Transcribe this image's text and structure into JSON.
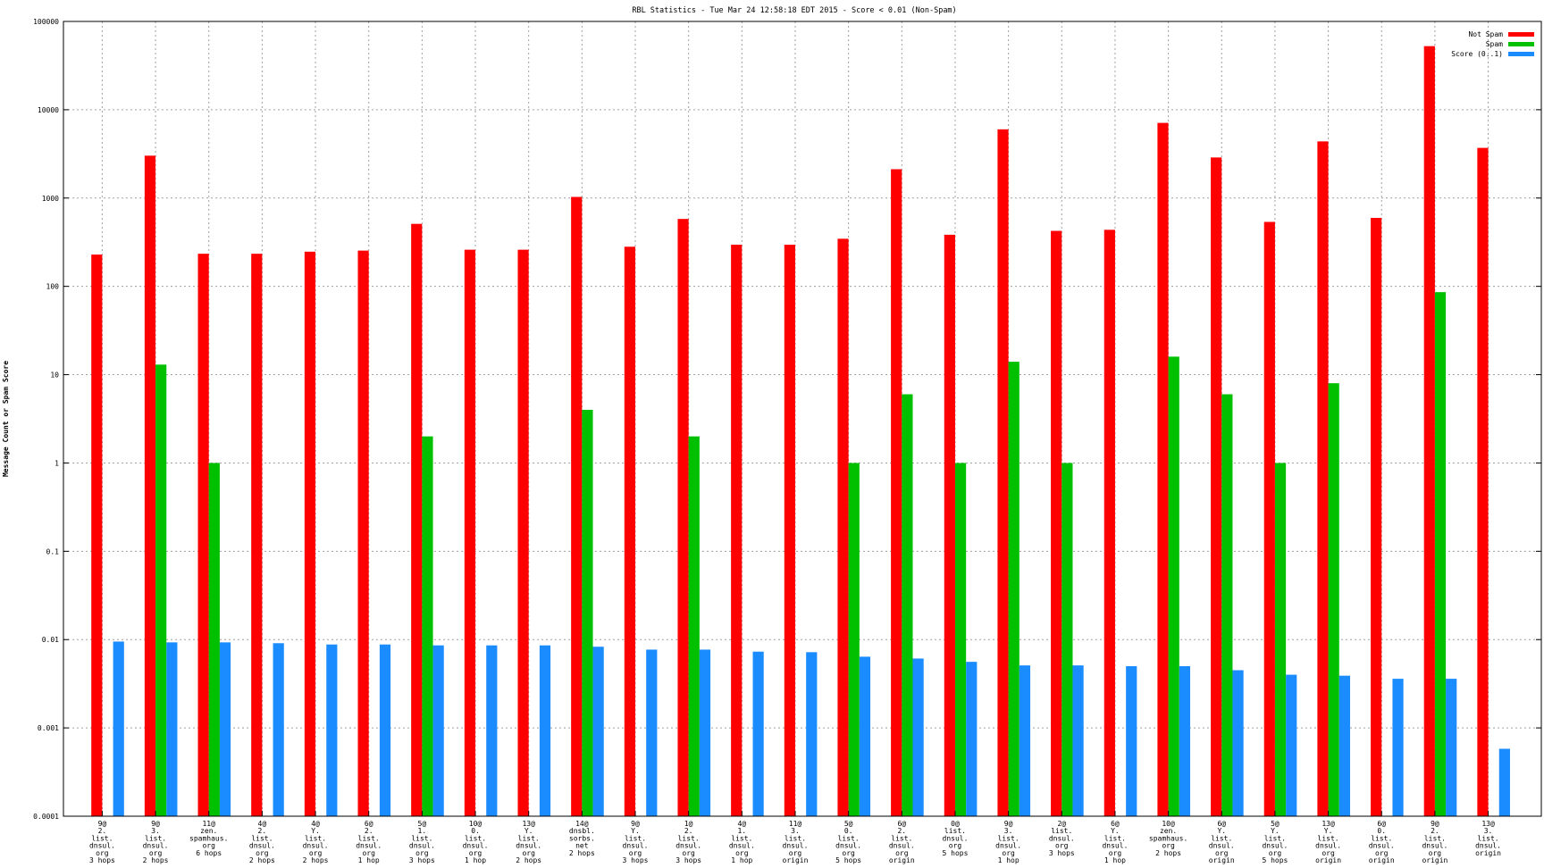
{
  "chart_data": {
    "type": "bar",
    "title": "RBL Statistics - Tue Mar 24 12:58:18 EDT 2015 - Score < 0.01 (Non-Spam)",
    "xlabel": "",
    "ylabel": "Message Count or Spam Score",
    "yscale": "log",
    "ylim": [
      0.0001,
      100000
    ],
    "yticks": [
      "100000",
      "10000",
      "1000",
      "100",
      "10",
      "1",
      "0.1",
      "0.01",
      "0.001",
      "0.0001"
    ],
    "grid": true,
    "legend_position": "top-right",
    "categories": [
      "9@\n2.\nlist.\ndnsul.\norg\n3 hops",
      "9@\n3.\nlist.\ndnsul.\norg\n2 hops",
      "11@\nzen.\nspamhaus.\norg\n6 hops",
      "4@\n2.\nlist.\ndnsul.\norg\n2 hops",
      "4@\nY.\nlist.\ndnsul.\norg\n2 hops",
      "6@\n2.\nlist.\ndnsul.\norg\n1 hop",
      "5@\n1.\nlist.\ndnsul.\norg\n3 hops",
      "10@\n0.\nlist.\ndnsul.\norg\n1 hop",
      "13@\nY.\nlist.\ndnsul.\norg\n2 hops",
      "14@\ndnsbl.\nsorbs.\nnet\n2 hops",
      "9@\nY.\nlist.\ndnsul.\norg\n3 hops",
      "1@\n2.\nlist.\ndnsul.\norg\n3 hops",
      "4@\n1.\nlist.\ndnsul.\norg\n1 hop",
      "11@\n3.\nlist.\ndnsul.\norg\norigin",
      "5@\n0.\nlist.\ndnsul.\norg\n5 hops",
      "6@\n2.\nlist.\ndnsul.\norg\norigin",
      "0@\nlist.\ndnsul.\norg\n5 hops",
      "9@\n3.\nlist.\ndnsul.\norg\n1 hop",
      "2@\nlist.\ndnsul.\norg\n3 hops",
      "6@\nY.\nlist.\ndnsul.\norg\n1 hop",
      "10@\nzen.\nspamhaus.\norg\n2 hops",
      "6@\nY.\nlist.\ndnsul.\norg\norigin",
      "5@\nY.\nlist.\ndnsul.\norg\n5 hops",
      "13@\nY.\nlist.\ndnsul.\norg\norigin",
      "6@\n0.\nlist.\ndnsul.\norg\norigin",
      "9@\n2.\nlist.\ndnsul.\norg\norigin",
      "13@\n3.\nlist.\ndnsul.\norigin"
    ],
    "series": [
      {
        "name": "Not Spam",
        "color": "#ff0000",
        "values": [
          229,
          3020,
          234,
          234,
          247,
          254,
          510,
          260,
          260,
          1030,
          281,
          580,
          296,
          296,
          346,
          2120,
          384,
          6000,
          425,
          437,
          7100,
          2880,
          537,
          4380,
          596,
          52500,
          3700
        ]
      },
      {
        "name": "Spam",
        "color": "#00c000",
        "values": [
          null,
          13,
          1,
          null,
          null,
          null,
          2,
          null,
          null,
          4,
          null,
          2,
          null,
          null,
          1,
          6,
          1,
          14,
          1,
          null,
          16,
          6,
          1,
          8,
          null,
          86,
          null
        ]
      },
      {
        "name": "Score (0..1)",
        "color": "#1a8cff",
        "values": [
          0.0095,
          0.0093,
          0.0093,
          0.0091,
          0.0088,
          0.0088,
          0.0086,
          0.0086,
          0.0086,
          0.0083,
          0.0077,
          0.0077,
          0.0073,
          0.0072,
          0.0064,
          0.0061,
          0.0056,
          0.0051,
          0.0051,
          0.005,
          0.005,
          0.0045,
          0.004,
          0.0039,
          0.0036,
          0.0036,
          0.00058
        ]
      }
    ]
  }
}
